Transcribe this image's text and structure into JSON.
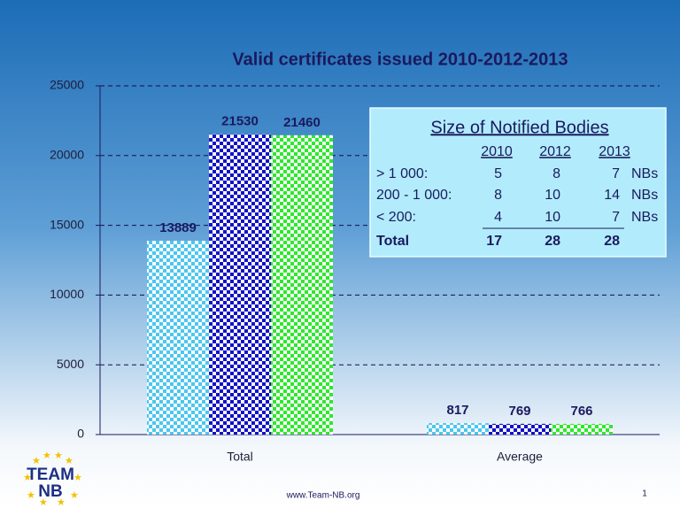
{
  "chart_data": {
    "type": "bar",
    "title": "Valid certificates issued 2010-2012-2013",
    "categories": [
      "Total",
      "Average"
    ],
    "series": [
      {
        "color": "#4cc6f0",
        "values": [
          13889,
          817
        ]
      },
      {
        "color": "#1212c8",
        "values": [
          21530,
          769
        ]
      },
      {
        "color": "#2ee82e",
        "values": [
          21460,
          766
        ]
      }
    ],
    "ylim": [
      0,
      25000
    ],
    "yticks": [
      0,
      5000,
      10000,
      15000,
      20000,
      25000
    ],
    "grid": true
  },
  "table": {
    "title": "Size of Notified Bodies",
    "columns": [
      "2010",
      "2012",
      "2013"
    ],
    "rows": [
      {
        "label": "> 1 000:",
        "values": [
          5,
          8,
          7
        ],
        "unit": "NBs"
      },
      {
        "label": "200 - 1 000:",
        "values": [
          8,
          10,
          14
        ],
        "unit": "NBs"
      },
      {
        "label": "< 200:",
        "values": [
          4,
          10,
          7
        ],
        "unit": "NBs"
      },
      {
        "label": "Total",
        "values": [
          17,
          28,
          28
        ]
      }
    ]
  },
  "footer": {
    "url": "www.Team-NB.org",
    "page": "1",
    "logo": [
      "TEAM",
      "NB"
    ]
  }
}
